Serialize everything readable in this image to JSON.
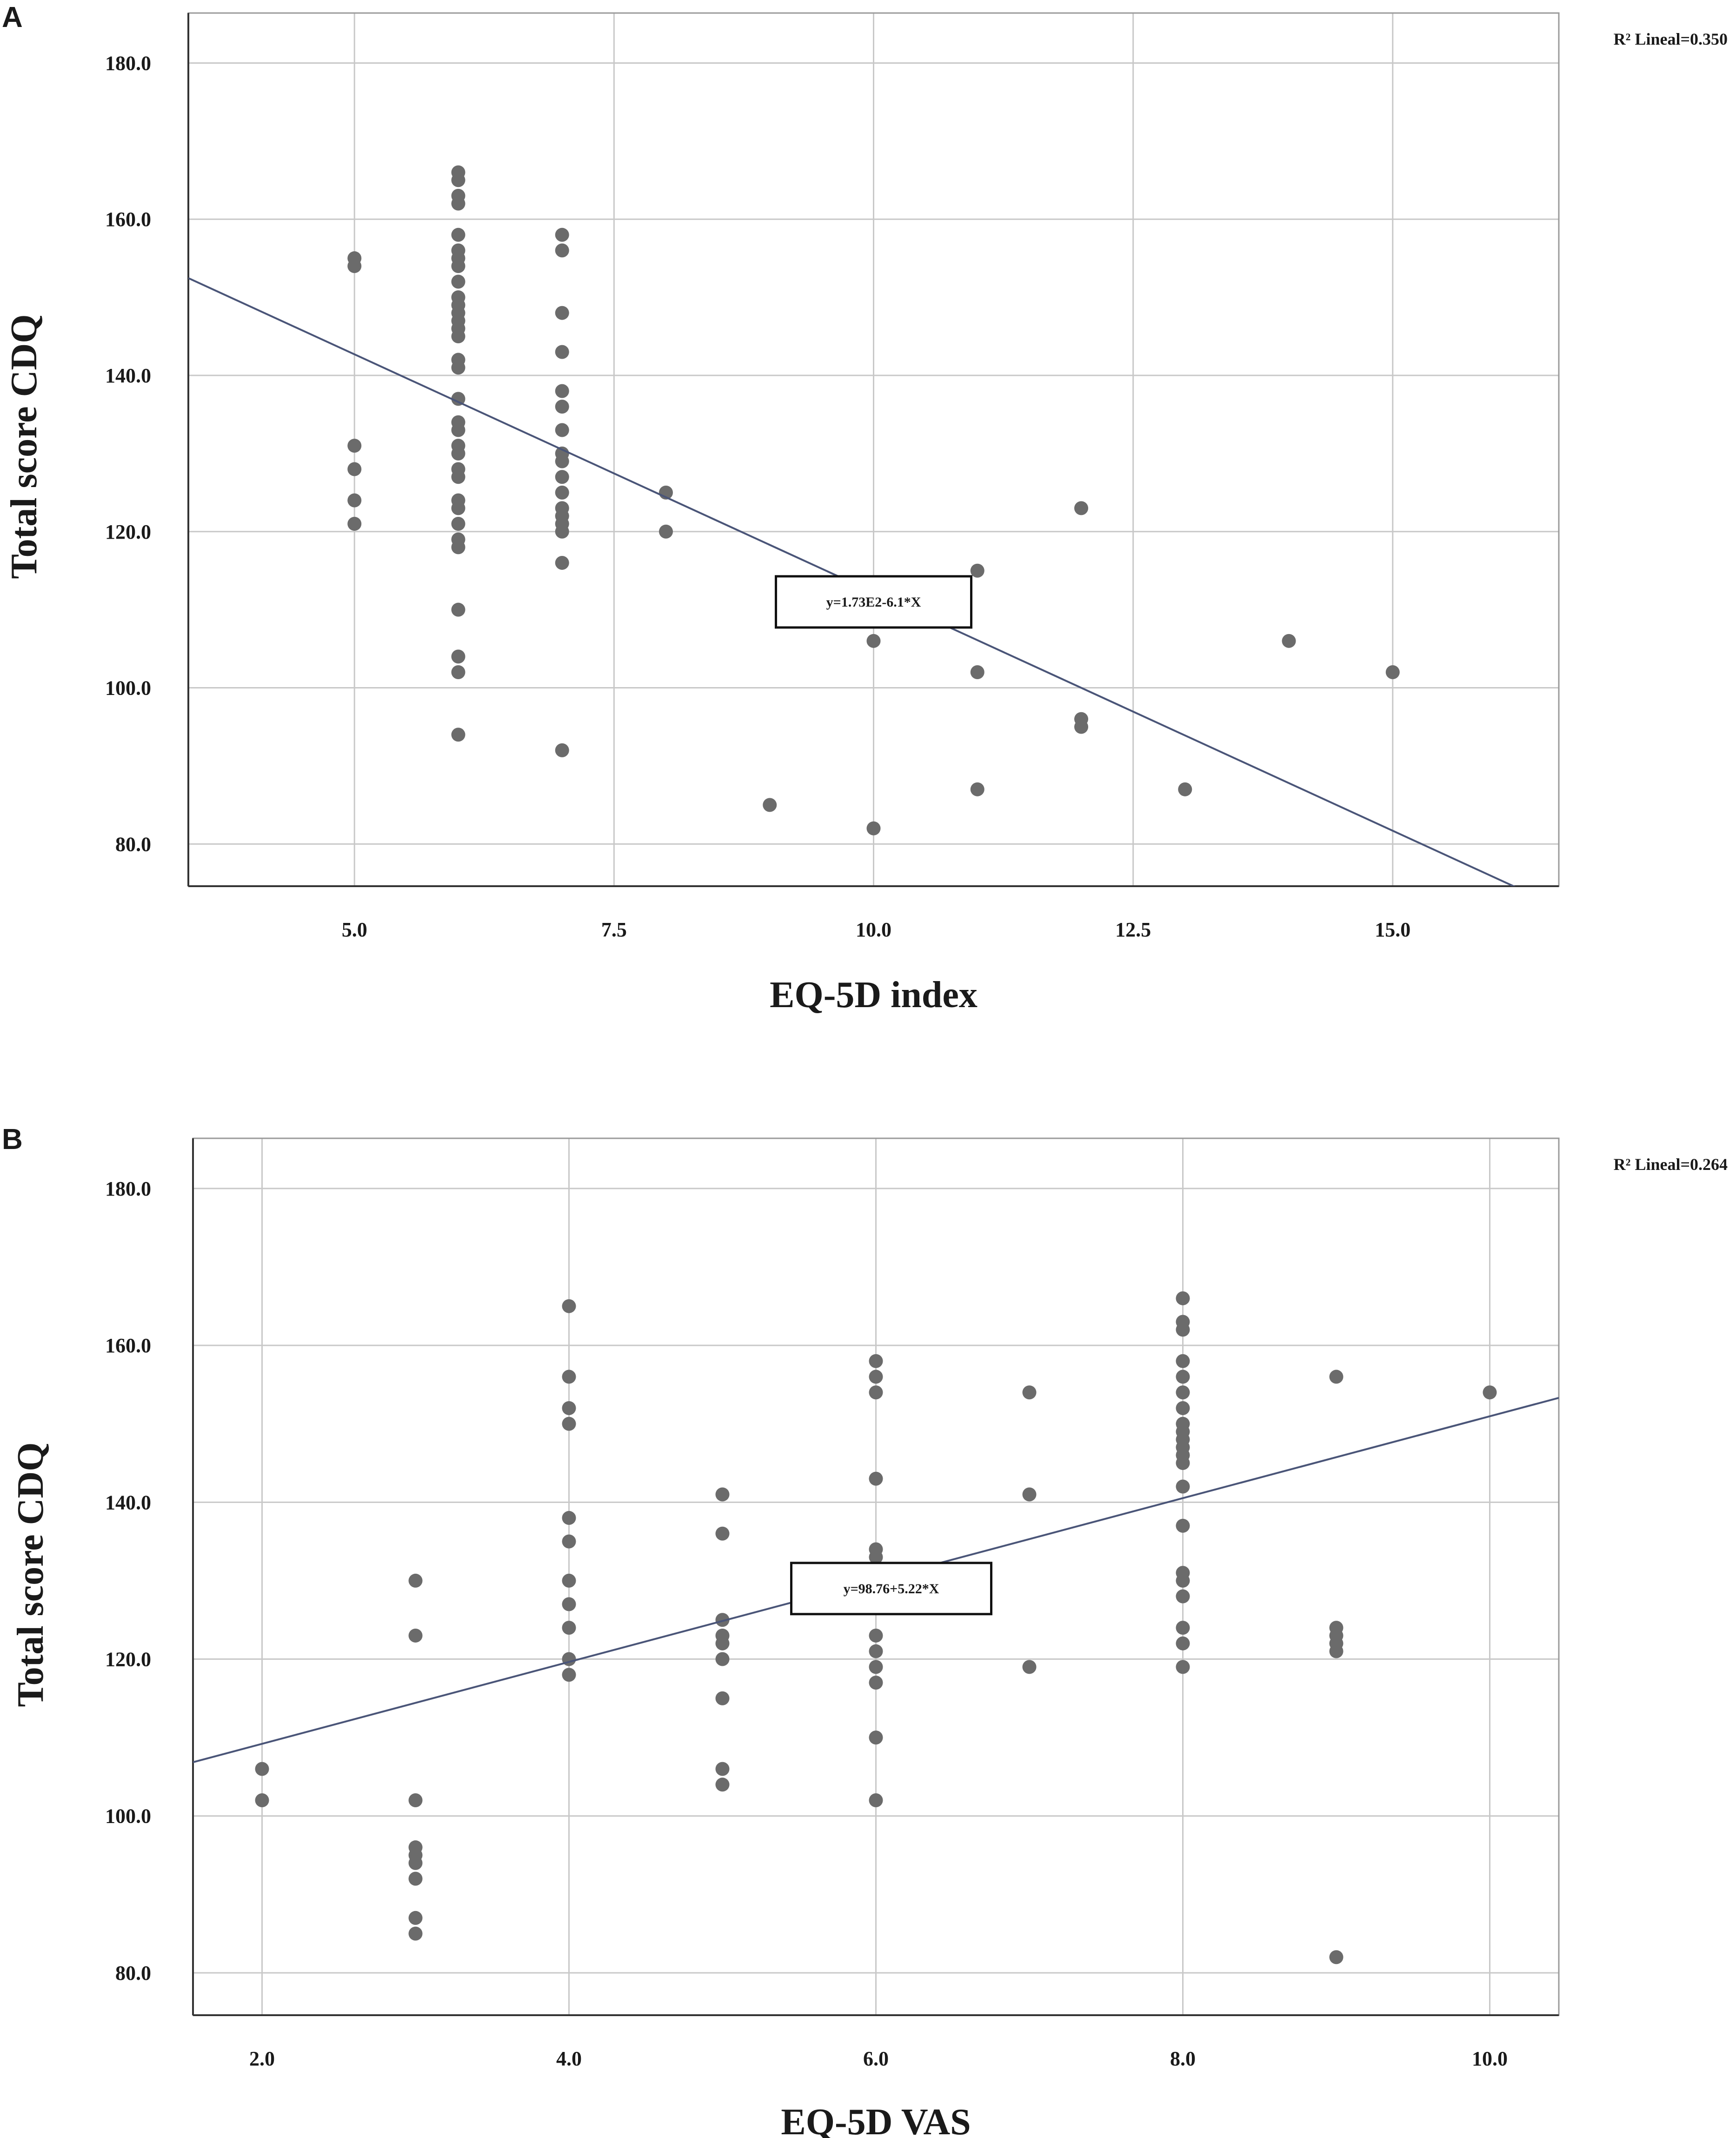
{
  "chart_data": [
    {
      "type": "scatter",
      "panel_label": "A",
      "title": "",
      "xlabel": "EQ-5D index",
      "ylabel": "Total score CDQ",
      "xlim": [
        3.4,
        16.6
      ],
      "ylim": [
        74.6,
        186.4
      ],
      "x_ticks": [
        5.0,
        7.5,
        10.0,
        12.5,
        15.0
      ],
      "x_tick_labels": [
        "5.0",
        "7.5",
        "10.0",
        "12.5",
        "15.0"
      ],
      "y_ticks": [
        80.0,
        100.0,
        120.0,
        140.0,
        160.0,
        180.0
      ],
      "y_tick_labels": [
        "80.0",
        "100.0",
        "120.0",
        "140.0",
        "160.0",
        "180.0"
      ],
      "grid": true,
      "fit_line": {
        "intercept": 173.2,
        "slope": -6.1,
        "x_range": [
          3.4,
          16.2
        ]
      },
      "equation_label": "y=1.73E2-6.1*X",
      "equation_anchor": [
        10.0,
        111
      ],
      "r2_label": "R² Lineal=0.350",
      "points": [
        [
          5,
          155
        ],
        [
          5,
          154
        ],
        [
          5,
          131
        ],
        [
          5,
          128
        ],
        [
          5,
          124
        ],
        [
          5,
          121
        ],
        [
          6,
          166
        ],
        [
          6,
          165
        ],
        [
          6,
          163
        ],
        [
          6,
          162
        ],
        [
          6,
          158
        ],
        [
          6,
          156
        ],
        [
          6,
          155
        ],
        [
          6,
          154
        ],
        [
          6,
          152
        ],
        [
          6,
          150
        ],
        [
          6,
          149
        ],
        [
          6,
          148
        ],
        [
          6,
          147
        ],
        [
          6,
          146
        ],
        [
          6,
          145
        ],
        [
          6,
          142
        ],
        [
          6,
          141
        ],
        [
          6,
          137
        ],
        [
          6,
          134
        ],
        [
          6,
          133
        ],
        [
          6,
          131
        ],
        [
          6,
          130
        ],
        [
          6,
          128
        ],
        [
          6,
          127
        ],
        [
          6,
          124
        ],
        [
          6,
          123
        ],
        [
          6,
          121
        ],
        [
          6,
          119
        ],
        [
          6,
          118
        ],
        [
          6,
          110
        ],
        [
          6,
          104
        ],
        [
          6,
          102
        ],
        [
          6,
          94
        ],
        [
          7,
          158
        ],
        [
          7,
          156
        ],
        [
          7,
          148
        ],
        [
          7,
          143
        ],
        [
          7,
          138
        ],
        [
          7,
          136
        ],
        [
          7,
          133
        ],
        [
          7,
          130
        ],
        [
          7,
          129
        ],
        [
          7,
          127
        ],
        [
          7,
          125
        ],
        [
          7,
          123
        ],
        [
          7,
          122
        ],
        [
          7,
          121
        ],
        [
          7,
          120
        ],
        [
          7,
          116
        ],
        [
          7,
          92
        ],
        [
          8,
          125
        ],
        [
          8,
          120
        ],
        [
          9,
          85
        ],
        [
          10,
          106
        ],
        [
          10,
          82
        ],
        [
          11,
          115
        ],
        [
          11,
          102
        ],
        [
          11,
          87
        ],
        [
          12,
          123
        ],
        [
          12,
          96
        ],
        [
          12,
          95
        ],
        [
          13,
          87
        ],
        [
          14,
          106
        ],
        [
          15,
          102
        ]
      ]
    },
    {
      "type": "scatter",
      "panel_label": "B",
      "title": "",
      "xlabel": "EQ-5D VAS",
      "ylabel": "Total score CDQ",
      "xlim": [
        1.55,
        10.45
      ],
      "ylim": [
        74.6,
        186.4
      ],
      "x_ticks": [
        2.0,
        4.0,
        6.0,
        8.0,
        10.0
      ],
      "x_tick_labels": [
        "2.0",
        "4.0",
        "6.0",
        "8.0",
        "10.0"
      ],
      "y_ticks": [
        80.0,
        100.0,
        120.0,
        140.0,
        160.0,
        180.0
      ],
      "y_tick_labels": [
        "80.0",
        "100.0",
        "120.0",
        "140.0",
        "160.0",
        "180.0"
      ],
      "grid": true,
      "fit_line": {
        "intercept": 98.76,
        "slope": 5.22,
        "x_range": [
          1.55,
          10.45
        ]
      },
      "equation_label": "y=98.76+5.22*X",
      "equation_anchor": [
        6.1,
        129
      ],
      "r2_label": "R² Lineal=0.264",
      "points": [
        [
          2,
          106
        ],
        [
          2,
          102
        ],
        [
          3,
          130
        ],
        [
          3,
          123
        ],
        [
          3,
          102
        ],
        [
          3,
          96
        ],
        [
          3,
          95
        ],
        [
          3,
          94
        ],
        [
          3,
          92
        ],
        [
          3,
          87
        ],
        [
          3,
          85
        ],
        [
          4,
          165
        ],
        [
          4,
          156
        ],
        [
          4,
          152
        ],
        [
          4,
          150
        ],
        [
          4,
          138
        ],
        [
          4,
          135
        ],
        [
          4,
          130
        ],
        [
          4,
          127
        ],
        [
          4,
          124
        ],
        [
          4,
          120
        ],
        [
          4,
          118
        ],
        [
          5,
          141
        ],
        [
          5,
          136
        ],
        [
          5,
          125
        ],
        [
          5,
          123
        ],
        [
          5,
          122
        ],
        [
          5,
          120
        ],
        [
          5,
          115
        ],
        [
          5,
          106
        ],
        [
          5,
          104
        ],
        [
          6,
          158
        ],
        [
          6,
          156
        ],
        [
          6,
          154
        ],
        [
          6,
          143
        ],
        [
          6,
          134
        ],
        [
          6,
          133
        ],
        [
          6,
          130
        ],
        [
          6,
          127
        ],
        [
          6,
          123
        ],
        [
          6,
          121
        ],
        [
          6,
          119
        ],
        [
          6,
          117
        ],
        [
          6,
          110
        ],
        [
          6,
          102
        ],
        [
          7,
          154
        ],
        [
          7,
          141
        ],
        [
          7,
          119
        ],
        [
          8,
          166
        ],
        [
          8,
          163
        ],
        [
          8,
          162
        ],
        [
          8,
          158
        ],
        [
          8,
          156
        ],
        [
          8,
          154
        ],
        [
          8,
          152
        ],
        [
          8,
          150
        ],
        [
          8,
          149
        ],
        [
          8,
          148
        ],
        [
          8,
          147
        ],
        [
          8,
          146
        ],
        [
          8,
          145
        ],
        [
          8,
          142
        ],
        [
          8,
          137
        ],
        [
          8,
          131
        ],
        [
          8,
          130
        ],
        [
          8,
          128
        ],
        [
          8,
          124
        ],
        [
          8,
          122
        ],
        [
          8,
          119
        ],
        [
          9,
          156
        ],
        [
          9,
          124
        ],
        [
          9,
          123
        ],
        [
          9,
          122
        ],
        [
          9,
          121
        ],
        [
          9,
          82
        ],
        [
          10,
          154
        ]
      ]
    }
  ]
}
